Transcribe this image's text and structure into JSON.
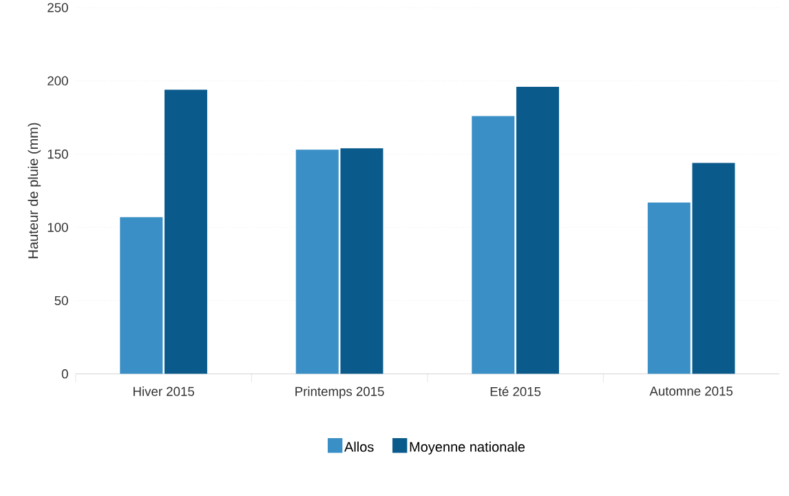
{
  "chart_data": {
    "type": "bar",
    "ylabel": "Hauteur de pluie (mm)",
    "categories": [
      "Hiver 2015",
      "Printemps 2015",
      "Eté 2015",
      "Automne 2015"
    ],
    "series": [
      {
        "name": "Allos",
        "color": "#3a8fc6",
        "values": [
          107,
          153,
          176,
          117
        ]
      },
      {
        "name": "Moyenne nationale",
        "color": "#0a5a8c",
        "values": [
          194,
          154,
          196,
          144
        ]
      }
    ],
    "ylim": [
      0,
      250
    ],
    "yticks": [
      0,
      50,
      100,
      150,
      200,
      250
    ],
    "grid": "y",
    "legend": "bottom"
  }
}
